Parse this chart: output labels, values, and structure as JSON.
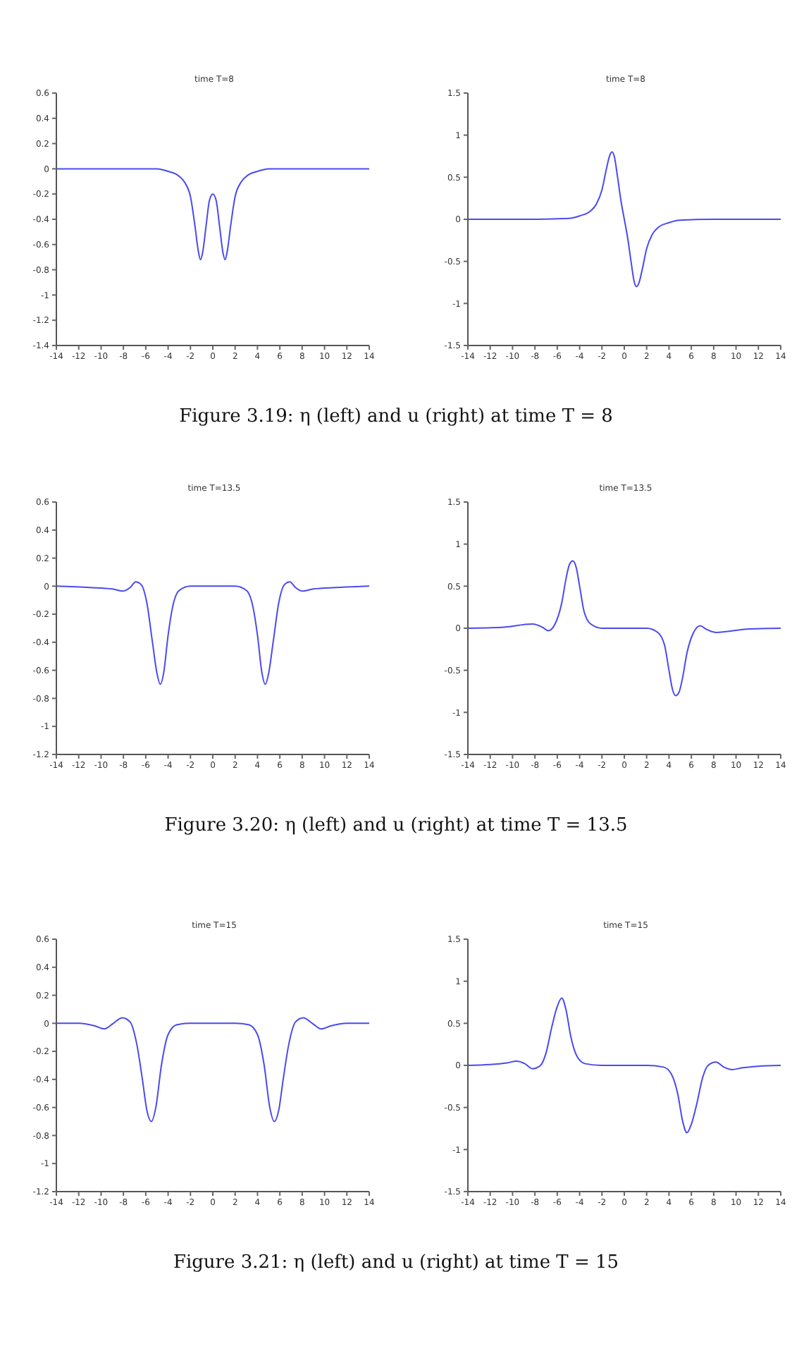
{
  "chart_data": [
    {
      "type": "line",
      "title": "time T=8",
      "annotations": [
        "Figure 3.19: η (left) and u (right) at time T = 8"
      ],
      "color": "#4a4af0",
      "xlim": [
        -14,
        14
      ],
      "xticks": [
        -14,
        -12,
        -10,
        -8,
        -6,
        -4,
        -2,
        0,
        2,
        4,
        6,
        8,
        10,
        12,
        14
      ],
      "ylim": [
        -1.4,
        0.6
      ],
      "yticks": [
        -1.4,
        -1.2,
        -1,
        -0.8,
        -0.6,
        -0.4,
        -0.2,
        0,
        0.2,
        0.4,
        0.6
      ],
      "x": [
        -14,
        -8,
        -5,
        -4,
        -3,
        -2.5,
        -2,
        -1.6,
        -1.3,
        -1.1,
        -0.9,
        -0.6,
        -0.3,
        0,
        0.3,
        0.6,
        0.9,
        1.1,
        1.3,
        1.6,
        2,
        2.5,
        3,
        4,
        5,
        8,
        14
      ],
      "values": [
        0,
        0,
        0,
        -0.02,
        -0.06,
        -0.11,
        -0.22,
        -0.45,
        -0.65,
        -0.72,
        -0.66,
        -0.45,
        -0.25,
        -0.2,
        -0.25,
        -0.45,
        -0.66,
        -0.72,
        -0.65,
        -0.45,
        -0.22,
        -0.11,
        -0.06,
        -0.02,
        0,
        0,
        0
      ]
    },
    {
      "type": "line",
      "title": "time T=8",
      "color": "#4a4af0",
      "xlim": [
        -14,
        14
      ],
      "xticks": [
        -14,
        -12,
        -10,
        -8,
        -6,
        -4,
        -2,
        0,
        2,
        4,
        6,
        8,
        10,
        12,
        14
      ],
      "ylim": [
        -1.5,
        1.5
      ],
      "yticks": [
        -1.5,
        -1,
        -0.5,
        0,
        0.5,
        1,
        1.5
      ],
      "x": [
        -14,
        -8,
        -5,
        -4,
        -3,
        -2.5,
        -2,
        -1.6,
        -1.3,
        -1.1,
        -0.9,
        -0.6,
        -0.3,
        0,
        0.3,
        0.6,
        0.9,
        1.1,
        1.3,
        1.6,
        2,
        2.5,
        3,
        4,
        5,
        8,
        14
      ],
      "values": [
        0,
        0,
        0.01,
        0.04,
        0.1,
        0.18,
        0.35,
        0.6,
        0.76,
        0.8,
        0.75,
        0.5,
        0.22,
        0,
        -0.22,
        -0.5,
        -0.75,
        -0.8,
        -0.76,
        -0.6,
        -0.35,
        -0.18,
        -0.1,
        -0.04,
        -0.01,
        0,
        0
      ]
    },
    {
      "type": "line",
      "title": "time T=13.5",
      "annotations": [
        "Figure 3.20: η (left) and u (right) at time T = 13.5"
      ],
      "color": "#4a4af0",
      "xlim": [
        -14,
        14
      ],
      "xticks": [
        -14,
        -12,
        -10,
        -8,
        -6,
        -4,
        -2,
        0,
        2,
        4,
        6,
        8,
        10,
        12,
        14
      ],
      "ylim": [
        -1.2,
        0.6
      ],
      "yticks": [
        -1.2,
        -1,
        -0.8,
        -0.6,
        -0.4,
        -0.2,
        0,
        0.2,
        0.4,
        0.6
      ],
      "x": [
        -14,
        -11,
        -9,
        -8,
        -7.4,
        -6.9,
        -6.4,
        -5.9,
        -5.4,
        -5,
        -4.7,
        -4.4,
        -4,
        -3.6,
        -3,
        -2,
        0,
        2,
        3,
        3.6,
        4,
        4.4,
        4.7,
        5,
        5.4,
        5.9,
        6.4,
        6.9,
        7.4,
        8,
        9,
        11,
        14
      ],
      "values": [
        0,
        -0.01,
        -0.02,
        -0.035,
        -0.01,
        0.03,
        0.01,
        -0.12,
        -0.4,
        -0.62,
        -0.7,
        -0.62,
        -0.35,
        -0.15,
        -0.03,
        0,
        0,
        0,
        -0.03,
        -0.15,
        -0.35,
        -0.62,
        -0.7,
        -0.62,
        -0.4,
        -0.12,
        0.01,
        0.03,
        -0.01,
        -0.035,
        -0.02,
        -0.01,
        0
      ]
    },
    {
      "type": "line",
      "title": "time T=13.5",
      "color": "#4a4af0",
      "xlim": [
        -14,
        14
      ],
      "xticks": [
        -14,
        -12,
        -10,
        -8,
        -6,
        -4,
        -2,
        0,
        2,
        4,
        6,
        8,
        10,
        12,
        14
      ],
      "ylim": [
        -1.5,
        1.5
      ],
      "yticks": [
        -1.5,
        -1,
        -0.5,
        0,
        0.5,
        1,
        1.5
      ],
      "x": [
        -14,
        -11,
        -8.2,
        -7.3,
        -6.8,
        -6.2,
        -5.6,
        -5.2,
        -4.9,
        -4.6,
        -4.3,
        -4,
        -3.6,
        -3,
        -2,
        0,
        2,
        3,
        3.6,
        4,
        4.3,
        4.6,
        4.9,
        5.2,
        5.6,
        6.2,
        6.8,
        7.3,
        8.2,
        11,
        14
      ],
      "values": [
        0,
        0.01,
        0.05,
        0.01,
        -0.03,
        0.05,
        0.3,
        0.6,
        0.76,
        0.8,
        0.72,
        0.5,
        0.2,
        0.05,
        0,
        0,
        0,
        -0.05,
        -0.2,
        -0.5,
        -0.72,
        -0.8,
        -0.76,
        -0.6,
        -0.3,
        -0.05,
        0.03,
        -0.01,
        -0.05,
        -0.01,
        0
      ]
    },
    {
      "type": "line",
      "title": "time T=15",
      "annotations": [
        "Figure 3.21: η (left) and u (right) at time T = 15"
      ],
      "color": "#4a4af0",
      "xlim": [
        -14,
        14
      ],
      "xticks": [
        -14,
        -12,
        -10,
        -8,
        -6,
        -4,
        -2,
        0,
        2,
        4,
        6,
        8,
        10,
        12,
        14
      ],
      "ylim": [
        -1.2,
        0.6
      ],
      "yticks": [
        -1.2,
        -1,
        -0.8,
        -0.6,
        -0.4,
        -0.2,
        0,
        0.2,
        0.4,
        0.6
      ],
      "x": [
        -14,
        -12,
        -10.5,
        -9.7,
        -8.9,
        -8.1,
        -7.4,
        -6.8,
        -6.3,
        -5.9,
        -5.5,
        -5.1,
        -4.6,
        -4,
        -3.2,
        -2,
        0,
        2,
        3.2,
        4,
        4.6,
        5.1,
        5.5,
        5.9,
        6.3,
        6.8,
        7.4,
        8.1,
        8.9,
        9.7,
        10.5,
        12,
        14
      ],
      "values": [
        0,
        0,
        -0.02,
        -0.04,
        0,
        0.04,
        0.01,
        -0.15,
        -0.4,
        -0.62,
        -0.7,
        -0.6,
        -0.3,
        -0.08,
        -0.01,
        0,
        0,
        0,
        -0.01,
        -0.08,
        -0.3,
        -0.6,
        -0.7,
        -0.62,
        -0.4,
        -0.15,
        0.01,
        0.04,
        0,
        -0.04,
        -0.02,
        0,
        0
      ]
    },
    {
      "type": "line",
      "title": "time T=15",
      "color": "#4a4af0",
      "xlim": [
        -14,
        14
      ],
      "xticks": [
        -14,
        -12,
        -10,
        -8,
        -6,
        -4,
        -2,
        0,
        2,
        4,
        6,
        8,
        10,
        12,
        14
      ],
      "ylim": [
        -1.5,
        1.5
      ],
      "yticks": [
        -1.5,
        -1,
        -0.5,
        0,
        0.5,
        1,
        1.5
      ],
      "x": [
        -14,
        -12,
        -10.5,
        -9.65,
        -8.9,
        -8.2,
        -7.5,
        -7,
        -6.5,
        -6,
        -5.6,
        -5.2,
        -4.8,
        -4.2,
        -3.5,
        -2,
        0,
        2,
        3.5,
        4.2,
        4.8,
        5.2,
        5.6,
        6,
        6.5,
        7,
        7.5,
        8.2,
        8.9,
        9.65,
        10.5,
        12,
        14
      ],
      "values": [
        0,
        0.01,
        0.03,
        0.05,
        0.02,
        -0.04,
        0,
        0.15,
        0.45,
        0.7,
        0.8,
        0.65,
        0.35,
        0.1,
        0.02,
        0,
        0,
        0,
        -0.02,
        -0.1,
        -0.35,
        -0.65,
        -0.8,
        -0.7,
        -0.45,
        -0.15,
        0,
        0.04,
        -0.02,
        -0.05,
        -0.03,
        -0.01,
        0
      ]
    }
  ]
}
